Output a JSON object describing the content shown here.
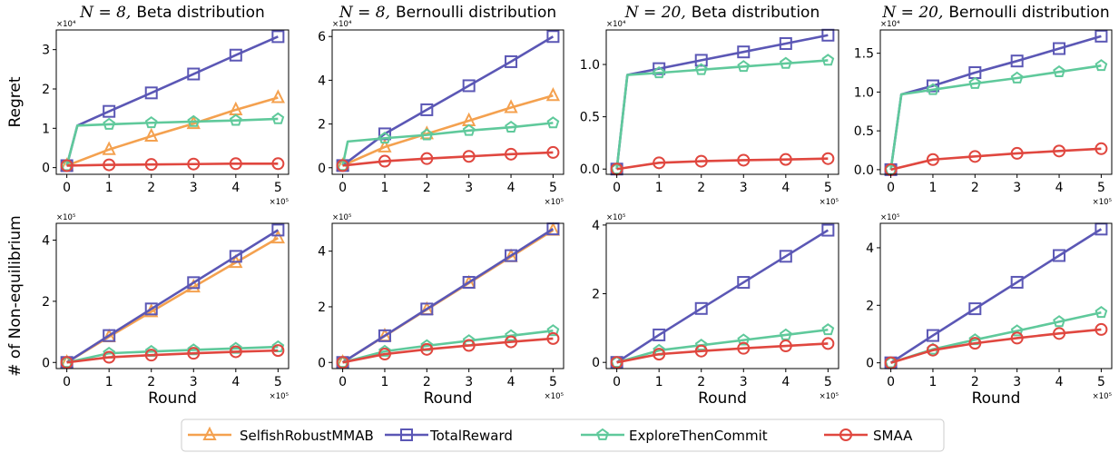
{
  "colors": {
    "SelfishRobustMMAB": "#f4a14f",
    "TotalReward": "#5b57b5",
    "ExploreThenCommit": "#5fc99b",
    "SMAA": "#e0473f"
  },
  "markers": {
    "SelfishRobustMMAB": "triangle",
    "TotalReward": "square",
    "ExploreThenCommit": "pentagon",
    "SMAA": "circle"
  },
  "legend": {
    "items": [
      "SelfishRobustMMAB",
      "TotalReward",
      "ExploreThenCommit",
      "SMAA"
    ]
  },
  "chart_data": [
    {
      "type": "line",
      "row": 0,
      "col": 0,
      "title_math": "N = 8,",
      "title_text": "Beta distribution",
      "xlabel": "",
      "ylabel": "Regret",
      "x_exponent": "×10⁵",
      "y_exponent": "×10⁴",
      "xlim": [
        -0.25,
        5.25
      ],
      "ylim": [
        -0.17,
        3.5
      ],
      "xticks": [
        0,
        1,
        2,
        3,
        4,
        5
      ],
      "yticks": [
        0,
        1,
        2,
        3
      ],
      "series": [
        {
          "name": "SelfishRobustMMAB",
          "x": [
            0,
            1,
            2,
            3,
            4,
            5
          ],
          "y": [
            0.05,
            0.46,
            0.8,
            1.12,
            1.47,
            1.78
          ]
        },
        {
          "name": "TotalReward",
          "x": [
            0,
            0.25,
            1,
            2,
            3,
            4,
            5
          ],
          "y": [
            0.05,
            1.07,
            1.43,
            1.9,
            2.38,
            2.86,
            3.33
          ]
        },
        {
          "name": "ExploreThenCommit",
          "x": [
            0,
            0.25,
            1,
            2,
            3,
            4,
            5
          ],
          "y": [
            0.05,
            1.07,
            1.1,
            1.14,
            1.17,
            1.2,
            1.24
          ]
        },
        {
          "name": "SMAA",
          "x": [
            0,
            1,
            2,
            3,
            4,
            5
          ],
          "y": [
            0.05,
            0.07,
            0.08,
            0.09,
            0.1,
            0.1
          ]
        }
      ]
    },
    {
      "type": "line",
      "row": 0,
      "col": 1,
      "title_math": "N = 8,",
      "title_text": "Bernoulli distribution",
      "xlabel": "",
      "ylabel": "",
      "x_exponent": "×10⁵",
      "y_exponent": "×10⁴",
      "xlim": [
        -0.25,
        5.25
      ],
      "ylim": [
        -0.3,
        6.3
      ],
      "xticks": [
        0,
        1,
        2,
        3,
        4,
        5
      ],
      "yticks": [
        0,
        2,
        4,
        6
      ],
      "series": [
        {
          "name": "SelfishRobustMMAB",
          "x": [
            0,
            1,
            2,
            3,
            4,
            5
          ],
          "y": [
            0.1,
            0.95,
            1.55,
            2.15,
            2.75,
            3.3
          ]
        },
        {
          "name": "TotalReward",
          "x": [
            0,
            1,
            2,
            3,
            4,
            5
          ],
          "y": [
            0.1,
            1.55,
            2.65,
            3.75,
            4.85,
            6.0
          ]
        },
        {
          "name": "ExploreThenCommit",
          "x": [
            0,
            0.12,
            1,
            2,
            3,
            4,
            5
          ],
          "y": [
            0.1,
            1.2,
            1.35,
            1.5,
            1.7,
            1.85,
            2.05
          ]
        },
        {
          "name": "SMAA",
          "x": [
            0,
            1,
            2,
            3,
            4,
            5
          ],
          "y": [
            0.1,
            0.3,
            0.42,
            0.52,
            0.62,
            0.7
          ]
        }
      ]
    },
    {
      "type": "line",
      "row": 0,
      "col": 2,
      "title_math": "N = 20,",
      "title_text": "Beta distribution",
      "xlabel": "",
      "ylabel": "",
      "x_exponent": "×10⁵",
      "y_exponent": "×10⁴",
      "xlim": [
        -0.25,
        5.25
      ],
      "ylim": [
        -0.05,
        1.33
      ],
      "xticks": [
        0,
        1,
        2,
        3,
        4,
        5
      ],
      "yticks": [
        0.0,
        0.5,
        1.0
      ],
      "ytick_labels": [
        "0.0",
        "0.5",
        "1.0"
      ],
      "series": [
        {
          "name": "TotalReward",
          "x": [
            0,
            0.25,
            1,
            2,
            3,
            4,
            5
          ],
          "y": [
            0.0,
            0.9,
            0.96,
            1.04,
            1.12,
            1.2,
            1.28
          ]
        },
        {
          "name": "ExploreThenCommit",
          "x": [
            0,
            0.25,
            1,
            2,
            3,
            4,
            5
          ],
          "y": [
            0.0,
            0.9,
            0.92,
            0.95,
            0.98,
            1.01,
            1.04
          ]
        },
        {
          "name": "SMAA",
          "x": [
            0,
            1,
            2,
            3,
            4,
            5
          ],
          "y": [
            0.0,
            0.06,
            0.075,
            0.085,
            0.092,
            0.1
          ]
        }
      ]
    },
    {
      "type": "line",
      "row": 0,
      "col": 3,
      "title_math": "N = 20,",
      "title_text": "Bernoulli distribution",
      "xlabel": "",
      "ylabel": "",
      "x_exponent": "×10⁵",
      "y_exponent": "×10⁴",
      "xlim": [
        -0.25,
        5.25
      ],
      "ylim": [
        -0.06,
        1.8
      ],
      "xticks": [
        0,
        1,
        2,
        3,
        4,
        5
      ],
      "yticks": [
        0.0,
        0.5,
        1.0,
        1.5
      ],
      "ytick_labels": [
        "0.0",
        "0.5",
        "1.0",
        "1.5"
      ],
      "series": [
        {
          "name": "TotalReward",
          "x": [
            0,
            0.25,
            1,
            2,
            3,
            4,
            5
          ],
          "y": [
            0.0,
            0.97,
            1.08,
            1.25,
            1.4,
            1.56,
            1.72
          ]
        },
        {
          "name": "ExploreThenCommit",
          "x": [
            0,
            0.25,
            1,
            2,
            3,
            4,
            5
          ],
          "y": [
            0.0,
            0.97,
            1.03,
            1.11,
            1.18,
            1.26,
            1.34
          ]
        },
        {
          "name": "SMAA",
          "x": [
            0,
            1,
            2,
            3,
            4,
            5
          ],
          "y": [
            0.0,
            0.13,
            0.17,
            0.21,
            0.24,
            0.27
          ]
        }
      ]
    },
    {
      "type": "line",
      "row": 1,
      "col": 0,
      "title_math": "",
      "title_text": "",
      "xlabel": "Round",
      "ylabel": "# of Non-equilibrium",
      "x_exponent": "×10⁵",
      "y_exponent": "×10⁵",
      "xlim": [
        -0.25,
        5.25
      ],
      "ylim": [
        -0.2,
        4.55
      ],
      "xticks": [
        0,
        1,
        2,
        3,
        4,
        5
      ],
      "yticks": [
        0,
        2,
        4
      ],
      "series": [
        {
          "name": "SelfishRobustMMAB",
          "x": [
            0,
            1,
            2,
            3,
            4,
            5
          ],
          "y": [
            0.0,
            0.84,
            1.66,
            2.47,
            3.27,
            4.07
          ]
        },
        {
          "name": "TotalReward",
          "x": [
            0,
            1,
            2,
            3,
            4,
            5
          ],
          "y": [
            0.0,
            0.88,
            1.75,
            2.61,
            3.47,
            4.33
          ]
        },
        {
          "name": "ExploreThenCommit",
          "x": [
            0,
            1,
            2,
            3,
            4,
            5
          ],
          "y": [
            0.0,
            0.3,
            0.36,
            0.41,
            0.46,
            0.51
          ]
        },
        {
          "name": "SMAA",
          "x": [
            0,
            1,
            2,
            3,
            4,
            5
          ],
          "y": [
            0.0,
            0.17,
            0.24,
            0.3,
            0.35,
            0.39
          ]
        }
      ]
    },
    {
      "type": "line",
      "row": 1,
      "col": 1,
      "title_math": "",
      "title_text": "",
      "xlabel": "Round",
      "ylabel": "",
      "x_exponent": "×10⁵",
      "y_exponent": "×10⁵",
      "xlim": [
        -0.25,
        5.25
      ],
      "ylim": [
        -0.22,
        5.0
      ],
      "xticks": [
        0,
        1,
        2,
        3,
        4,
        5
      ],
      "yticks": [
        0,
        2,
        4
      ],
      "series": [
        {
          "name": "SelfishRobustMMAB",
          "x": [
            0,
            1,
            2,
            3,
            4,
            5
          ],
          "y": [
            0.0,
            0.95,
            1.9,
            2.85,
            3.8,
            4.75
          ]
        },
        {
          "name": "TotalReward",
          "x": [
            0,
            1,
            2,
            3,
            4,
            5
          ],
          "y": [
            0.0,
            0.96,
            1.92,
            2.88,
            3.84,
            4.8
          ]
        },
        {
          "name": "ExploreThenCommit",
          "x": [
            0,
            1,
            2,
            3,
            4,
            5
          ],
          "y": [
            0.0,
            0.4,
            0.6,
            0.78,
            0.96,
            1.14
          ]
        },
        {
          "name": "SMAA",
          "x": [
            0,
            1,
            2,
            3,
            4,
            5
          ],
          "y": [
            0.0,
            0.3,
            0.47,
            0.61,
            0.74,
            0.86
          ]
        }
      ]
    },
    {
      "type": "line",
      "row": 1,
      "col": 2,
      "title_math": "",
      "title_text": "",
      "xlabel": "Round",
      "ylabel": "",
      "x_exponent": "×10⁵",
      "y_exponent": "×10⁵",
      "xlim": [
        -0.25,
        5.25
      ],
      "ylim": [
        -0.18,
        4.05
      ],
      "xticks": [
        0,
        1,
        2,
        3,
        4,
        5
      ],
      "yticks": [
        0,
        2,
        4
      ],
      "series": [
        {
          "name": "TotalReward",
          "x": [
            0,
            1,
            2,
            3,
            4,
            5
          ],
          "y": [
            0.0,
            0.8,
            1.57,
            2.33,
            3.09,
            3.85
          ]
        },
        {
          "name": "ExploreThenCommit",
          "x": [
            0,
            1,
            2,
            3,
            4,
            5
          ],
          "y": [
            0.0,
            0.35,
            0.5,
            0.65,
            0.8,
            0.95
          ]
        },
        {
          "name": "SMAA",
          "x": [
            0,
            1,
            2,
            3,
            4,
            5
          ],
          "y": [
            0.0,
            0.24,
            0.33,
            0.41,
            0.48,
            0.55
          ]
        }
      ]
    },
    {
      "type": "line",
      "row": 1,
      "col": 3,
      "title_math": "",
      "title_text": "",
      "xlabel": "Round",
      "ylabel": "",
      "x_exponent": "×10⁵",
      "y_exponent": "×10⁵",
      "xlim": [
        -0.25,
        5.25
      ],
      "ylim": [
        -0.2,
        4.85
      ],
      "xticks": [
        0,
        1,
        2,
        3,
        4,
        5
      ],
      "yticks": [
        0,
        2,
        4
      ],
      "series": [
        {
          "name": "TotalReward",
          "x": [
            0,
            1,
            2,
            3,
            4,
            5
          ],
          "y": [
            0.0,
            0.95,
            1.88,
            2.8,
            3.73,
            4.65
          ]
        },
        {
          "name": "ExploreThenCommit",
          "x": [
            0,
            1,
            2,
            3,
            4,
            5
          ],
          "y": [
            0.0,
            0.47,
            0.8,
            1.11,
            1.43,
            1.75
          ]
        },
        {
          "name": "SMAA",
          "x": [
            0,
            1,
            2,
            3,
            4,
            5
          ],
          "y": [
            0.0,
            0.44,
            0.68,
            0.86,
            1.02,
            1.16
          ]
        }
      ]
    }
  ]
}
